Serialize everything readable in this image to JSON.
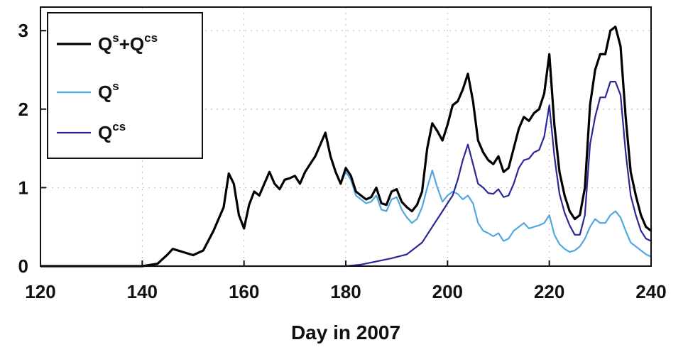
{
  "chart_data": {
    "type": "line",
    "xlabel": "Day in 2007",
    "ylabel": "",
    "xlim": [
      120,
      240
    ],
    "ylim": [
      0,
      3.3
    ],
    "xticks": [
      120,
      140,
      160,
      180,
      200,
      220,
      240
    ],
    "yticks": [
      0,
      1,
      2,
      3
    ],
    "grid": true,
    "legend_position": "top-left",
    "series": [
      {
        "name": "Qs+Qcs",
        "legend_base1": "Q",
        "legend_sup1": "s",
        "legend_join": "+",
        "legend_base2": "Q",
        "legend_sup2": "cs",
        "color": "#000000",
        "x": [
          120,
          140,
          143,
          145,
          146,
          148,
          150,
          152,
          154,
          156,
          157,
          158,
          159,
          160,
          161,
          162,
          163,
          164,
          165,
          166,
          167,
          168,
          169,
          170,
          171,
          172,
          173,
          174,
          175,
          176,
          177,
          178,
          179,
          180,
          181,
          182,
          183,
          184,
          185,
          186,
          187,
          188,
          189,
          190,
          191,
          192,
          193,
          194,
          195,
          196,
          197,
          198,
          199,
          200,
          201,
          202,
          203,
          204,
          205,
          206,
          207,
          208,
          209,
          210,
          211,
          212,
          213,
          214,
          215,
          216,
          217,
          218,
          219,
          220,
          221,
          222,
          223,
          224,
          225,
          226,
          227,
          228,
          229,
          230,
          231,
          232,
          233,
          234,
          235,
          236,
          237,
          238,
          239,
          240
        ],
        "y": [
          0,
          0,
          0.03,
          0.15,
          0.22,
          0.18,
          0.14,
          0.2,
          0.45,
          0.75,
          1.18,
          1.05,
          0.65,
          0.48,
          0.78,
          0.95,
          0.9,
          1.05,
          1.2,
          1.05,
          0.98,
          1.1,
          1.12,
          1.15,
          1.05,
          1.2,
          1.3,
          1.4,
          1.55,
          1.7,
          1.4,
          1.2,
          1.05,
          1.25,
          1.15,
          0.95,
          0.9,
          0.85,
          0.88,
          1.0,
          0.8,
          0.78,
          0.95,
          0.98,
          0.82,
          0.75,
          0.7,
          0.78,
          0.95,
          1.5,
          1.82,
          1.72,
          1.6,
          1.8,
          2.05,
          2.1,
          2.25,
          2.45,
          2.1,
          1.6,
          1.45,
          1.35,
          1.3,
          1.4,
          1.2,
          1.25,
          1.5,
          1.75,
          1.9,
          1.85,
          1.95,
          2.0,
          2.2,
          2.7,
          1.8,
          1.2,
          0.9,
          0.7,
          0.6,
          0.65,
          1.0,
          2.05,
          2.5,
          2.7,
          2.7,
          3.0,
          3.05,
          2.8,
          1.9,
          1.2,
          0.9,
          0.65,
          0.5,
          0.45
        ]
      },
      {
        "name": "Qs",
        "legend_base1": "Q",
        "legend_sup1": "s",
        "color": "#4fa8e0",
        "x": [
          120,
          140,
          143,
          145,
          146,
          148,
          150,
          152,
          154,
          156,
          157,
          158,
          159,
          160,
          161,
          162,
          163,
          164,
          165,
          166,
          167,
          168,
          169,
          170,
          171,
          172,
          173,
          174,
          175,
          176,
          177,
          178,
          179,
          180,
          181,
          182,
          183,
          184,
          185,
          186,
          187,
          188,
          189,
          190,
          191,
          192,
          193,
          194,
          195,
          196,
          197,
          198,
          199,
          200,
          201,
          202,
          203,
          204,
          205,
          206,
          207,
          208,
          209,
          210,
          211,
          212,
          213,
          214,
          215,
          216,
          217,
          218,
          219,
          220,
          221,
          222,
          223,
          224,
          225,
          226,
          227,
          228,
          229,
          230,
          231,
          232,
          233,
          234,
          235,
          236,
          237,
          238,
          239,
          240
        ],
        "y": [
          0,
          0,
          0.03,
          0.15,
          0.22,
          0.18,
          0.14,
          0.2,
          0.45,
          0.75,
          1.18,
          1.05,
          0.65,
          0.48,
          0.78,
          0.95,
          0.9,
          1.05,
          1.2,
          1.05,
          0.98,
          1.1,
          1.12,
          1.15,
          1.05,
          1.2,
          1.3,
          1.4,
          1.55,
          1.7,
          1.4,
          1.2,
          1.05,
          1.2,
          1.1,
          0.9,
          0.85,
          0.8,
          0.82,
          0.9,
          0.72,
          0.7,
          0.85,
          0.88,
          0.72,
          0.62,
          0.55,
          0.6,
          0.75,
          1.0,
          1.22,
          1.0,
          0.82,
          0.9,
          0.95,
          0.92,
          0.85,
          0.9,
          0.8,
          0.55,
          0.45,
          0.42,
          0.38,
          0.42,
          0.32,
          0.35,
          0.45,
          0.5,
          0.55,
          0.48,
          0.5,
          0.52,
          0.55,
          0.65,
          0.4,
          0.28,
          0.22,
          0.18,
          0.2,
          0.25,
          0.35,
          0.5,
          0.6,
          0.55,
          0.55,
          0.65,
          0.7,
          0.62,
          0.45,
          0.3,
          0.25,
          0.2,
          0.15,
          0.12
        ]
      },
      {
        "name": "Qcs",
        "legend_base1": "Q",
        "legend_sup1": "cs",
        "color": "#2a2896",
        "x": [
          120,
          180,
          183,
          186,
          189,
          192,
          195,
          197,
          199,
          200,
          201,
          202,
          203,
          204,
          205,
          206,
          207,
          208,
          209,
          210,
          211,
          212,
          213,
          214,
          215,
          216,
          217,
          218,
          219,
          220,
          221,
          222,
          223,
          224,
          225,
          226,
          227,
          228,
          229,
          230,
          231,
          232,
          233,
          234,
          235,
          236,
          237,
          238,
          239,
          240
        ],
        "y": [
          0,
          0,
          0.02,
          0.06,
          0.1,
          0.15,
          0.3,
          0.5,
          0.7,
          0.8,
          0.9,
          1.1,
          1.35,
          1.55,
          1.3,
          1.05,
          1.0,
          0.93,
          0.92,
          0.98,
          0.88,
          0.9,
          1.05,
          1.25,
          1.35,
          1.37,
          1.45,
          1.48,
          1.65,
          2.05,
          1.4,
          0.92,
          0.68,
          0.52,
          0.4,
          0.4,
          0.65,
          1.55,
          1.9,
          2.15,
          2.15,
          2.35,
          2.35,
          2.18,
          1.45,
          0.9,
          0.65,
          0.45,
          0.35,
          0.32
        ]
      }
    ]
  }
}
